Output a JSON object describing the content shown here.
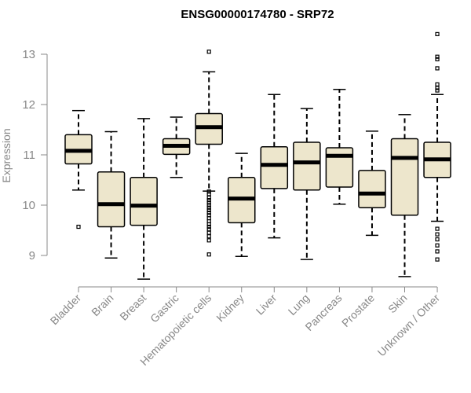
{
  "chart_data": {
    "type": "boxplot",
    "title": "ENSG00000174780 - SRP72",
    "xlabel": "",
    "ylabel": "Expression",
    "ylim": [
      8.5,
      13.5
    ],
    "yticks": [
      9,
      10,
      11,
      12,
      13
    ],
    "categories": [
      "Bladder",
      "Brain",
      "Breast",
      "Gastric",
      "Hematopoietic cells",
      "Kidney",
      "Liver",
      "Lung",
      "Pancreas",
      "Prostate",
      "Skin",
      "Unknown / Other"
    ],
    "boxes": [
      {
        "category": "Bladder",
        "whisker_low": 10.3,
        "q1": 10.82,
        "median": 11.08,
        "q3": 11.4,
        "whisker_high": 11.88,
        "outliers": [
          9.57
        ]
      },
      {
        "category": "Brain",
        "whisker_low": 8.95,
        "q1": 9.57,
        "median": 10.02,
        "q3": 10.66,
        "whisker_high": 11.46,
        "outliers": []
      },
      {
        "category": "Breast",
        "whisker_low": 8.53,
        "q1": 9.6,
        "median": 9.99,
        "q3": 10.55,
        "whisker_high": 11.72,
        "outliers": []
      },
      {
        "category": "Gastric",
        "whisker_low": 10.55,
        "q1": 11.01,
        "median": 11.18,
        "q3": 11.32,
        "whisker_high": 11.75,
        "outliers": []
      },
      {
        "category": "Hematopoietic cells",
        "whisker_low": 10.28,
        "q1": 11.21,
        "median": 11.55,
        "q3": 11.82,
        "whisker_high": 12.65,
        "outliers": [
          13.05,
          10.27,
          10.22,
          10.15,
          10.1,
          10.05,
          10.0,
          9.95,
          9.9,
          9.85,
          9.8,
          9.74,
          9.68,
          9.62,
          9.57,
          9.52,
          9.45,
          9.38,
          9.3,
          9.02
        ]
      },
      {
        "category": "Kidney",
        "whisker_low": 8.98,
        "q1": 9.65,
        "median": 10.13,
        "q3": 10.55,
        "whisker_high": 11.03,
        "outliers": []
      },
      {
        "category": "Liver",
        "whisker_low": 9.35,
        "q1": 10.33,
        "median": 10.8,
        "q3": 11.16,
        "whisker_high": 12.2,
        "outliers": []
      },
      {
        "category": "Lung",
        "whisker_low": 8.92,
        "q1": 10.3,
        "median": 10.85,
        "q3": 11.25,
        "whisker_high": 11.92,
        "outliers": []
      },
      {
        "category": "Pancreas",
        "whisker_low": 10.02,
        "q1": 10.36,
        "median": 10.98,
        "q3": 11.14,
        "whisker_high": 12.3,
        "outliers": []
      },
      {
        "category": "Prostate",
        "whisker_low": 9.4,
        "q1": 9.95,
        "median": 10.23,
        "q3": 10.69,
        "whisker_high": 11.47,
        "outliers": []
      },
      {
        "category": "Skin",
        "whisker_low": 8.58,
        "q1": 9.8,
        "median": 10.94,
        "q3": 11.32,
        "whisker_high": 11.8,
        "outliers": []
      },
      {
        "category": "Unknown / Other",
        "whisker_low": 9.68,
        "q1": 10.55,
        "median": 10.91,
        "q3": 11.25,
        "whisker_high": 12.2,
        "outliers": [
          13.4,
          12.95,
          12.9,
          12.72,
          12.4,
          12.33,
          12.28,
          9.53,
          9.42,
          9.32,
          9.2,
          9.08,
          8.92
        ]
      }
    ]
  }
}
